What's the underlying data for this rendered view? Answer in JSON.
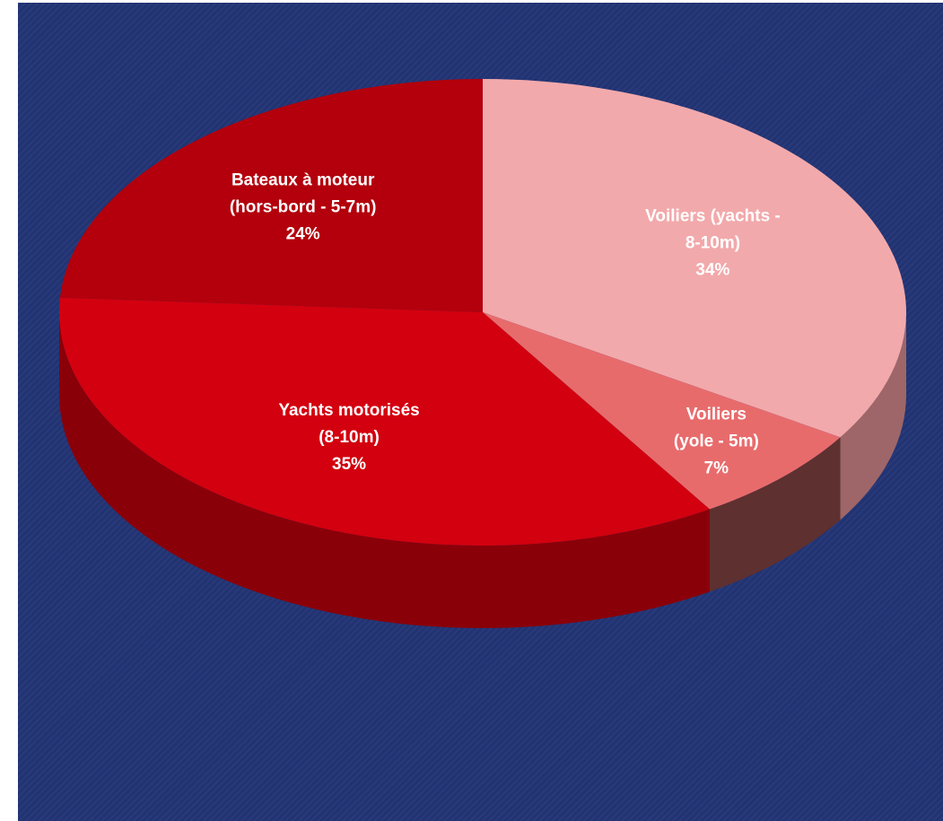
{
  "chart_data": {
    "type": "pie",
    "title": "",
    "slices": [
      {
        "label": "Voiliers (yachts -\n8-10m)",
        "value": 34,
        "percent_label": "34%",
        "color": "#f2a9ab",
        "side_color": "#9e6668"
      },
      {
        "label": "Voiliers\n(yole - 5m)",
        "value": 7,
        "percent_label": "7%",
        "color": "#e86b6c",
        "side_color": "#5e3030"
      },
      {
        "label": "Yachts motorisés\n(8-10m)",
        "value": 35,
        "percent_label": "35%",
        "color": "#d3000f",
        "side_color": "#8a0009"
      },
      {
        "label": "Bateaux à moteur\n(hors-bord - 5-7m)",
        "value": 24,
        "percent_label": "24%",
        "color": "#b3000c",
        "side_color": "#700007"
      }
    ],
    "legend": "none",
    "background_color": "#213373",
    "label_color": "#ffffff"
  }
}
